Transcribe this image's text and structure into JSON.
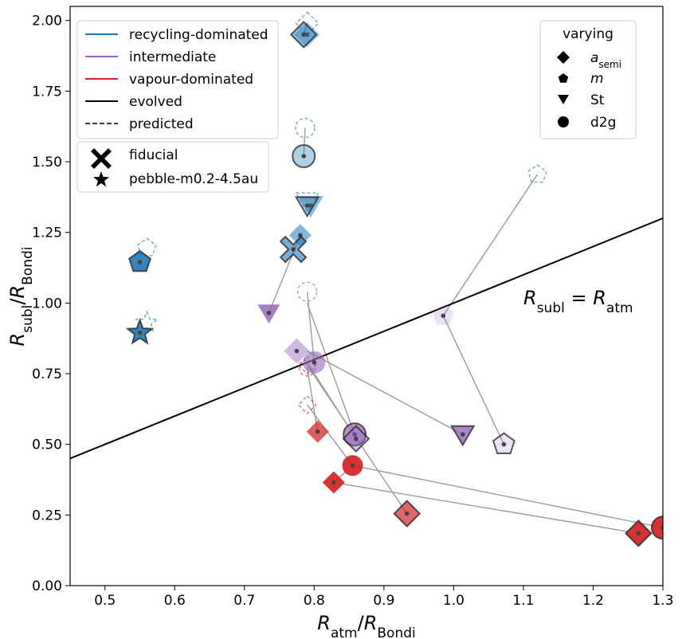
{
  "chart_data": {
    "type": "scatter",
    "xlabel": "R_atm/R_Bondi",
    "ylabel": "R_subl/R_Bondi",
    "xlabel_main": "R",
    "xlabel_sub": "atm",
    "xlabel_sep": "/",
    "xlabel_main2": "R",
    "xlabel_sub2": "Bondi",
    "ylabel_main": "R",
    "ylabel_sub": "subl",
    "ylabel_sep": "/",
    "ylabel_main2": "R",
    "ylabel_sub2": "Bondi",
    "xlim": [
      0.45,
      1.3
    ],
    "ylim": [
      0.0,
      2.05
    ],
    "xticks": [
      0.5,
      0.6,
      0.7,
      0.8,
      0.9,
      1.0,
      1.1,
      1.2,
      1.3
    ],
    "xtick_labels": [
      "0.5",
      "0.6",
      "0.7",
      "0.8",
      "0.9",
      "1.0",
      "1.1",
      "1.2",
      "1.3"
    ],
    "yticks": [
      0.0,
      0.25,
      0.5,
      0.75,
      1.0,
      1.25,
      1.5,
      1.75,
      2.0
    ],
    "ytick_labels": [
      "0.00",
      "0.25",
      "0.50",
      "0.75",
      "1.00",
      "1.25",
      "1.50",
      "1.75",
      "2.00"
    ],
    "diagonal_line": {
      "label": "R_subl = R_atm",
      "text_main": "R",
      "text_sub": "subl",
      "text_eq": " = ",
      "text_main2": "R",
      "text_sub2": "atm",
      "x_at": [
        0.45,
        1.3
      ],
      "y_at": [
        0.45,
        1.3
      ]
    },
    "colors": {
      "recycling": "#1f77b4",
      "intermediate": "#9467bd",
      "vapour": "#d62728",
      "connector": "#9a9a9a",
      "black": "#000000"
    },
    "legend_regimes": {
      "position": "top-left",
      "entries": [
        {
          "label": "recycling-dominated",
          "style": "solid",
          "color": "#1f77b4"
        },
        {
          "label": "intermediate",
          "style": "solid",
          "color": "#9467bd"
        },
        {
          "label": "vapour-dominated",
          "style": "solid",
          "color": "#d62728"
        },
        {
          "label": "evolved",
          "style": "solid",
          "color": "#000000"
        },
        {
          "label": "predicted",
          "style": "dashed",
          "color": "#000000"
        }
      ]
    },
    "legend_special": {
      "position": "upper-left",
      "entries": [
        {
          "label": "fiducial",
          "marker": "X"
        },
        {
          "label": "pebble-m0.2-4.5au",
          "marker": "star"
        }
      ]
    },
    "legend_varying": {
      "position": "top-right",
      "title": "varying",
      "entries": [
        {
          "label_main": "a",
          "label_sub": "semi",
          "italic": true,
          "marker": "diamond"
        },
        {
          "label_main": "m",
          "label_sub": "",
          "italic": true,
          "marker": "pentagon"
        },
        {
          "label_main": "St",
          "label_sub": "",
          "italic": false,
          "marker": "triangle-down"
        },
        {
          "label_main": "d2g",
          "label_sub": "",
          "italic": false,
          "marker": "circle"
        }
      ]
    },
    "points": [
      {
        "marker": "diamond",
        "color": "recycling",
        "alpha": 0.35,
        "size": 16,
        "evolved": [
          0.79,
          1.95
        ],
        "predicted": [
          0.79,
          1.99
        ],
        "predicted_color": "recycling",
        "edge": false
      },
      {
        "marker": "diamond",
        "color": "recycling",
        "alpha": 0.5,
        "size": 16,
        "evolved": [
          0.785,
          1.95
        ],
        "predicted": null,
        "edge": true
      },
      {
        "marker": "circle",
        "color": "recycling",
        "alpha": 0.35,
        "size": 14,
        "evolved": [
          0.785,
          1.52
        ],
        "predicted": [
          0.787,
          1.62
        ],
        "predicted_color": "recycling",
        "edge": true
      },
      {
        "marker": "triangle",
        "color": "recycling",
        "alpha": 0.5,
        "size": 16,
        "evolved": [
          0.795,
          1.345
        ],
        "predicted": [
          0.79,
          1.36
        ],
        "predicted_color": "recycling",
        "edge": false
      },
      {
        "marker": "triangle",
        "color": "recycling",
        "alpha": 0.35,
        "size": 14,
        "evolved": [
          0.79,
          1.345
        ],
        "predicted": null,
        "edge": true
      },
      {
        "marker": "diamond",
        "color": "recycling",
        "alpha": 0.55,
        "size": 14,
        "evolved": [
          0.78,
          1.24
        ],
        "predicted": null,
        "edge": false
      },
      {
        "marker": "X",
        "color": "recycling",
        "alpha": 0.6,
        "size": 16,
        "evolved": [
          0.77,
          1.19
        ],
        "predicted": null,
        "edge": true
      },
      {
        "marker": "pentagon",
        "color": "recycling",
        "alpha": 0.9,
        "size": 14,
        "evolved": [
          0.55,
          1.145
        ],
        "predicted": [
          0.56,
          1.195
        ],
        "predicted_color": "recycling",
        "edge": true
      },
      {
        "marker": "star",
        "color": "recycling",
        "alpha": 0.9,
        "size": 16,
        "evolved": [
          0.55,
          0.895
        ],
        "predicted": [
          0.56,
          0.93
        ],
        "predicted_color": "recycling",
        "edge": true
      },
      {
        "marker": "pentagon",
        "color": "recycling",
        "alpha": 0.18,
        "size": 14,
        "evolved": [
          1.12,
          1.455
        ],
        "predicted": [
          1.12,
          1.455
        ],
        "predicted_color": "recycling",
        "edge": false,
        "predicted_only": true
      },
      {
        "marker": "pentagon",
        "color": "intermediate",
        "alpha": 0.2,
        "size": 14,
        "evolved": [
          0.985,
          0.955
        ],
        "predicted": null,
        "edge": false
      },
      {
        "marker": "pentagon",
        "color": "intermediate",
        "alpha": 0.2,
        "size": 14,
        "evolved": [
          1.072,
          0.5
        ],
        "predicted": null,
        "edge": true
      },
      {
        "marker": "triangle",
        "color": "intermediate",
        "alpha": 0.85,
        "size": 14,
        "evolved": [
          0.735,
          0.965
        ],
        "predicted": null,
        "edge": false
      },
      {
        "marker": "circle",
        "color": "intermediate",
        "alpha": 0.3,
        "size": 14,
        "evolved": [
          0.79,
          1.04
        ],
        "predicted": [
          0.79,
          1.04
        ],
        "predicted_color": "intermediate",
        "edge": false,
        "predicted_only": true
      },
      {
        "marker": "diamond",
        "color": "intermediate",
        "alpha": 0.45,
        "size": 16,
        "evolved": [
          0.775,
          0.83
        ],
        "predicted": null,
        "edge": false
      },
      {
        "marker": "circle",
        "color": "intermediate",
        "alpha": 0.6,
        "size": 14,
        "evolved": [
          0.8,
          0.79
        ],
        "predicted": null,
        "edge": false
      },
      {
        "marker": "circle",
        "color": "intermediate",
        "alpha": 0.7,
        "size": 14,
        "evolved": [
          0.858,
          0.535
        ],
        "predicted": null,
        "edge": true
      },
      {
        "marker": "diamond",
        "color": "intermediate",
        "alpha": 0.4,
        "size": 16,
        "evolved": [
          0.86,
          0.52
        ],
        "predicted": null,
        "edge": true
      },
      {
        "marker": "triangle",
        "color": "intermediate",
        "alpha": 0.8,
        "size": 14,
        "evolved": [
          1.013,
          0.535
        ],
        "predicted": null,
        "edge": true
      },
      {
        "marker": "diamond",
        "color": "vapour",
        "alpha": 0.35,
        "size": 13,
        "evolved": [
          0.79,
          0.78
        ],
        "predicted": [
          0.79,
          0.78
        ],
        "predicted_color": "vapour",
        "edge": false,
        "predicted_only": true
      },
      {
        "marker": "circle",
        "color": "vapour",
        "alpha": 0.35,
        "size": 12,
        "evolved": [
          0.79,
          0.77
        ],
        "predicted": [
          0.79,
          0.77
        ],
        "predicted_color": "vapour",
        "edge": false,
        "predicted_only": true
      },
      {
        "marker": "diamond",
        "color": "vapour",
        "alpha": 0.5,
        "size": 13,
        "evolved": [
          0.79,
          0.64
        ],
        "predicted": [
          0.79,
          0.64
        ],
        "predicted_color": "vapour",
        "edge": false,
        "predicted_only": true
      },
      {
        "marker": "diamond",
        "color": "vapour",
        "alpha": 0.75,
        "size": 14,
        "evolved": [
          0.805,
          0.545
        ],
        "predicted": null,
        "edge": false
      },
      {
        "marker": "circle",
        "color": "vapour",
        "alpha": 0.95,
        "size": 13,
        "evolved": [
          0.855,
          0.425
        ],
        "predicted": null,
        "edge": false
      },
      {
        "marker": "diamond",
        "color": "vapour",
        "alpha": 0.95,
        "size": 14,
        "evolved": [
          0.828,
          0.365
        ],
        "predicted": null,
        "edge": false
      },
      {
        "marker": "diamond",
        "color": "vapour",
        "alpha": 0.7,
        "size": 16,
        "evolved": [
          0.933,
          0.255
        ],
        "predicted": null,
        "edge": true
      },
      {
        "marker": "diamond",
        "color": "vapour",
        "alpha": 0.95,
        "size": 16,
        "evolved": [
          1.265,
          0.185
        ],
        "predicted": null,
        "edge": true
      },
      {
        "marker": "circle",
        "color": "vapour",
        "alpha": 0.95,
        "size": 14,
        "evolved": [
          1.3,
          0.205
        ],
        "predicted": null,
        "edge": true
      }
    ],
    "connectors": [
      [
        [
          0.735,
          0.965
        ],
        [
          0.78,
          1.24
        ]
      ],
      [
        [
          1.12,
          1.455
        ],
        [
          0.985,
          0.955
        ]
      ],
      [
        [
          0.985,
          0.955
        ],
        [
          1.072,
          0.5
        ]
      ],
      [
        [
          0.79,
          1.04
        ],
        [
          0.8,
          0.79
        ]
      ],
      [
        [
          0.79,
          1.0
        ],
        [
          0.858,
          0.535
        ]
      ],
      [
        [
          0.79,
          0.83
        ],
        [
          1.013,
          0.535
        ]
      ],
      [
        [
          0.79,
          0.79
        ],
        [
          0.86,
          0.52
        ]
      ],
      [
        [
          0.79,
          0.78
        ],
        [
          0.933,
          0.255
        ]
      ],
      [
        [
          0.79,
          0.77
        ],
        [
          0.805,
          0.545
        ]
      ],
      [
        [
          0.79,
          0.64
        ],
        [
          0.855,
          0.425
        ]
      ],
      [
        [
          0.828,
          0.365
        ],
        [
          0.855,
          0.425
        ]
      ],
      [
        [
          0.828,
          0.365
        ],
        [
          1.265,
          0.185
        ]
      ],
      [
        [
          0.855,
          0.425
        ],
        [
          1.3,
          0.205
        ]
      ],
      [
        [
          0.785,
          1.52
        ],
        [
          0.787,
          1.62
        ]
      ],
      [
        [
          0.785,
          1.95
        ],
        [
          0.79,
          1.99
        ]
      ]
    ]
  }
}
